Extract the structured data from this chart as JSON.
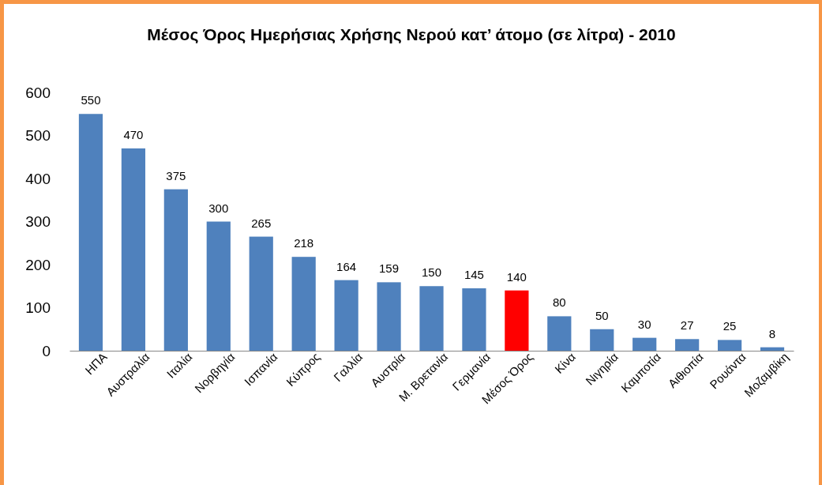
{
  "chart_data": {
    "type": "bar",
    "title": "Μέσος Όρος Ημερήσιας Χρήσης Νερού κατ’ άτομο (σε λίτρα) - 2010",
    "categories": [
      "ΗΠΑ",
      "Αυστραλία",
      "Ιταλία",
      "Νορβηγία",
      "Ισπανία",
      "Κύπρος",
      "Γαλλία",
      "Αυστρία",
      "Μ. Βρετανία",
      "Γερμανία",
      "Μέσος Όρος",
      "Κίνα",
      "Νιγηρία",
      "Καμποτία",
      "Αιθιοπία",
      "Ρουάντα",
      "Μοζαμβίκη"
    ],
    "values": [
      550,
      470,
      375,
      300,
      265,
      218,
      164,
      159,
      150,
      145,
      140,
      80,
      50,
      30,
      27,
      25,
      8
    ],
    "colors": [
      "#4f81bd",
      "#4f81bd",
      "#4f81bd",
      "#4f81bd",
      "#4f81bd",
      "#4f81bd",
      "#4f81bd",
      "#4f81bd",
      "#4f81bd",
      "#4f81bd",
      "#ff0000",
      "#4f81bd",
      "#4f81bd",
      "#4f81bd",
      "#4f81bd",
      "#4f81bd",
      "#4f81bd"
    ],
    "ylim": [
      0,
      600
    ],
    "yticks": [
      0,
      100,
      200,
      300,
      400,
      500,
      600
    ],
    "data_labels": true
  }
}
